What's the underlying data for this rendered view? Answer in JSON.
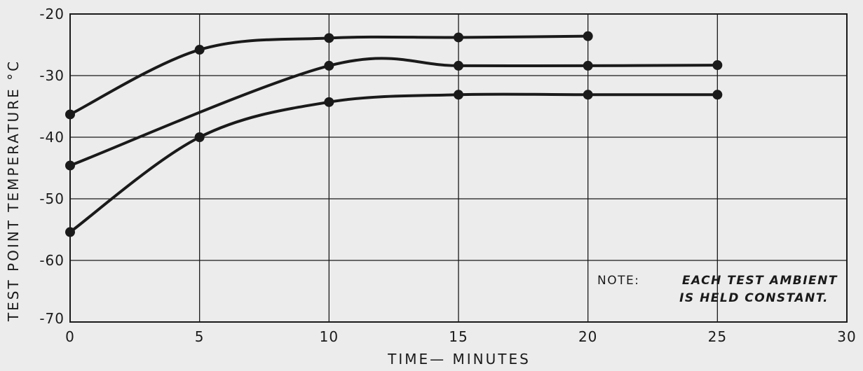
{
  "chart_data": {
    "type": "line",
    "title": "",
    "xlabel": "TIME— MINUTES",
    "ylabel": "TEST POINT TEMPERATURE °C",
    "xlim": [
      0,
      30
    ],
    "ylim": [
      -70,
      -20
    ],
    "x_ticks": [
      "0",
      "5",
      "10",
      "15",
      "20",
      "25",
      "30"
    ],
    "y_ticks": [
      "-70",
      "-60",
      "-50",
      "-40",
      "-30",
      "-20"
    ],
    "grid": true,
    "series": [
      {
        "x": [
          0,
          5,
          10,
          15,
          20
        ],
        "y": [
          -36.3,
          -25.8,
          -23.9,
          -23.8,
          -23.6
        ]
      },
      {
        "x": [
          0,
          10,
          15,
          20,
          25
        ],
        "y": [
          -44.6,
          -28.4,
          -28.4,
          -28.4,
          -28.3
        ]
      },
      {
        "x": [
          0,
          5,
          10,
          15,
          20,
          25
        ],
        "y": [
          -55.4,
          -40.0,
          -34.3,
          -33.1,
          -33.1,
          -33.1
        ]
      }
    ],
    "annotations": [
      {
        "label": "NOTE:",
        "text_line1": "EACH TEST AMBIENT",
        "text_line2": "IS HELD CONSTANT."
      }
    ],
    "colors": {
      "line": "#1a1a1a",
      "grid": "#1a1a1a",
      "background": "#ececec"
    }
  }
}
